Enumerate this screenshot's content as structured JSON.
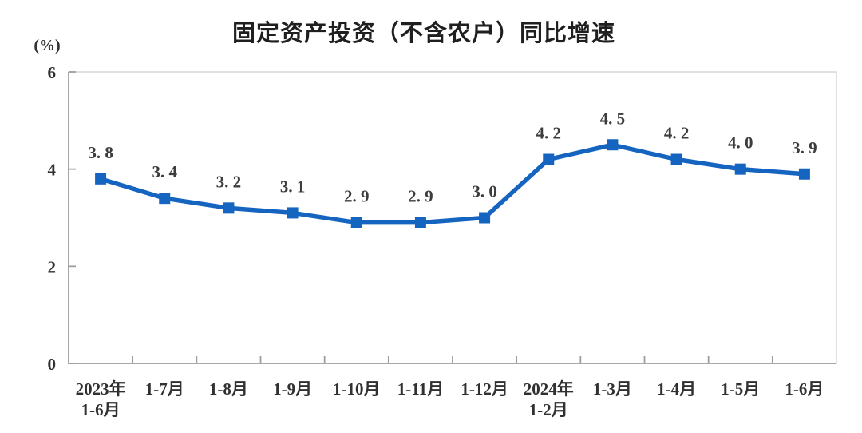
{
  "page": {
    "background": "#ffffff"
  },
  "chart_data": {
    "type": "line",
    "title": "固定资产投资（不含农户）同比增速",
    "ylabel": "(%)",
    "xlabel": "",
    "categories": [
      "2023年\n1-6月",
      "1-7月",
      "1-8月",
      "1-9月",
      "1-10月",
      "1-11月",
      "1-12月",
      "2024年\n1-2月",
      "1-3月",
      "1-4月",
      "1-5月",
      "1-6月"
    ],
    "values": [
      3.8,
      3.4,
      3.2,
      3.1,
      2.9,
      2.9,
      3.0,
      4.2,
      4.5,
      4.2,
      4.0,
      3.9
    ],
    "point_labels": [
      "3. 8",
      "3. 4",
      "3. 2",
      "3. 1",
      "2. 9",
      "2. 9",
      "3. 0",
      "4. 2",
      "4. 5",
      "4. 2",
      "4. 0",
      "3. 9"
    ],
    "ylim": [
      0,
      6
    ],
    "yticks": [
      0,
      2,
      4,
      6
    ],
    "grid": false,
    "legend": "none",
    "marker_shape": "square",
    "colors": {
      "line": "#1565c0",
      "marker": "#1565c0",
      "axis": "#9e9e9e",
      "plot_border": "#d9d9d9",
      "title_text": "#1f1f1f",
      "tick_text": "#303030",
      "point_label_text": "#3d3d3d"
    }
  }
}
